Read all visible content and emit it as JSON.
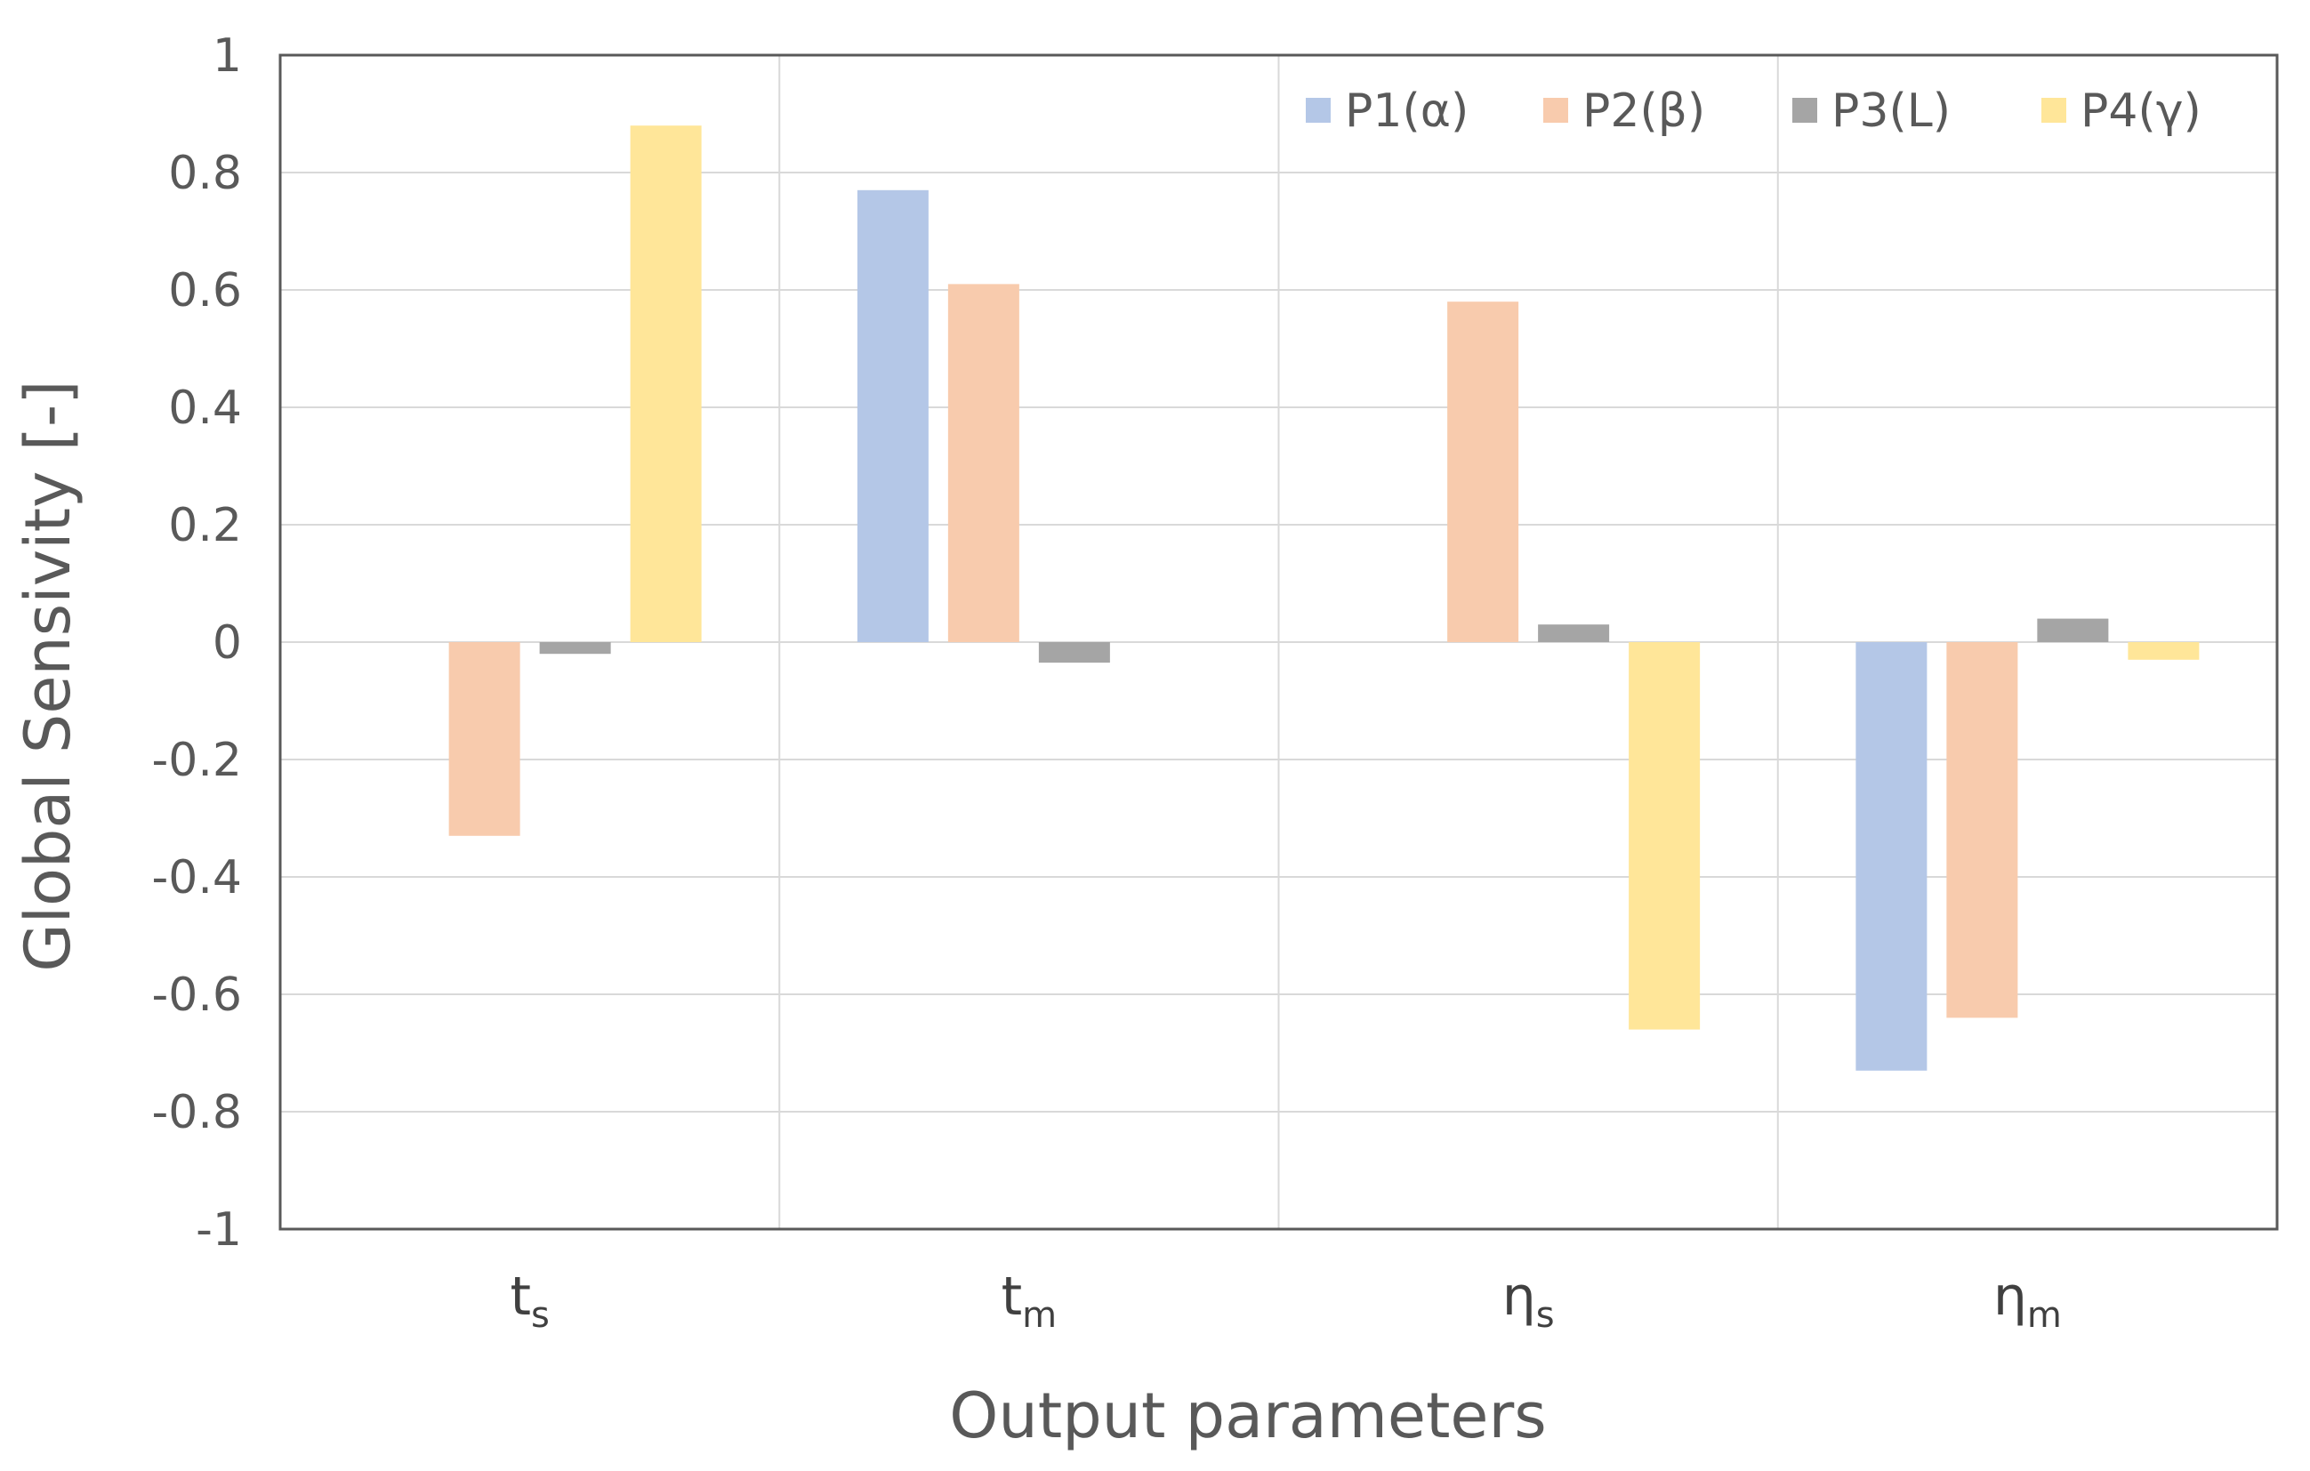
{
  "chart_data": {
    "type": "bar",
    "title": "",
    "xlabel": "Output parameters",
    "ylabel": "Global Sensivity [-]",
    "ylim": [
      -1,
      1
    ],
    "yticks": [
      1,
      0.8,
      0.6,
      0.4,
      0.2,
      0,
      -0.2,
      -0.4,
      -0.6,
      -0.8,
      -1
    ],
    "ytick_labels": [
      "1",
      "0.8",
      "0.6",
      "0.4",
      "0.2",
      "0",
      "-0.2",
      "-0.4",
      "-0.6",
      "-0.8",
      "-1"
    ],
    "grid": true,
    "legend_position": "top-right",
    "categories": [
      {
        "base": "t",
        "sub": "s"
      },
      {
        "base": "t",
        "sub": "m"
      },
      {
        "base": "η",
        "sub": "s"
      },
      {
        "base": "η",
        "sub": "m"
      }
    ],
    "series": [
      {
        "name": "P1(α)",
        "color": "#b4c7e7",
        "values": [
          0,
          0.77,
          0,
          -0.73
        ]
      },
      {
        "name": "P2(β)",
        "color": "#f8cbad",
        "values": [
          -0.33,
          0.61,
          0.58,
          -0.64
        ]
      },
      {
        "name": "P3(L)",
        "color": "#a5a5a5",
        "values": [
          -0.02,
          -0.035,
          0.03,
          0.04
        ]
      },
      {
        "name": "P4(γ)",
        "color": "#ffe699",
        "values": [
          0.88,
          0,
          -0.66,
          -0.03
        ]
      }
    ]
  }
}
